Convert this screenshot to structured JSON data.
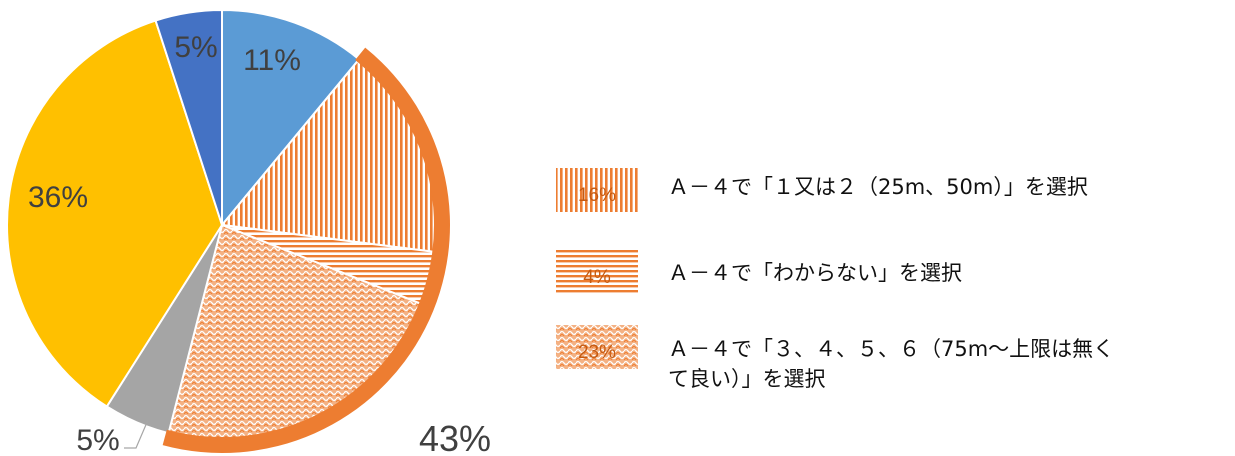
{
  "chart_data": {
    "type": "pie",
    "slices": [
      {
        "label": "11%",
        "value": 11,
        "color": "#5b9bd5",
        "pattern": "solid"
      },
      {
        "label": "16%",
        "value": 16,
        "color": "#ed7d31",
        "pattern": "vertical"
      },
      {
        "label": "4%",
        "value": 4,
        "color": "#ed7d31",
        "pattern": "horizontal"
      },
      {
        "label": "23%",
        "value": 23,
        "color": "#ed7d31",
        "pattern": "wave"
      },
      {
        "label": "5%",
        "value": 5,
        "color": "#a5a5a5",
        "pattern": "solid"
      },
      {
        "label": "36%",
        "value": 36,
        "color": "#ffc000",
        "pattern": "solid"
      },
      {
        "label": "5%",
        "value": 5,
        "color": "#4472c4",
        "pattern": "solid"
      }
    ],
    "group_label": "43%",
    "legend": [
      {
        "pct": "16%",
        "text": "Ａ－４で「１又は２（25m、50m）」を選択",
        "pattern": "vertical"
      },
      {
        "pct": "4%",
        "text": "Ａ－４で「わからない」を選択",
        "pattern": "horizontal"
      },
      {
        "pct": "23%",
        "text_lines": [
          "Ａ－４で「３、４、５、６（75m～上限は無く",
          "て良い）」を選択"
        ],
        "pattern": "wave"
      }
    ],
    "legend_placement": "right"
  }
}
